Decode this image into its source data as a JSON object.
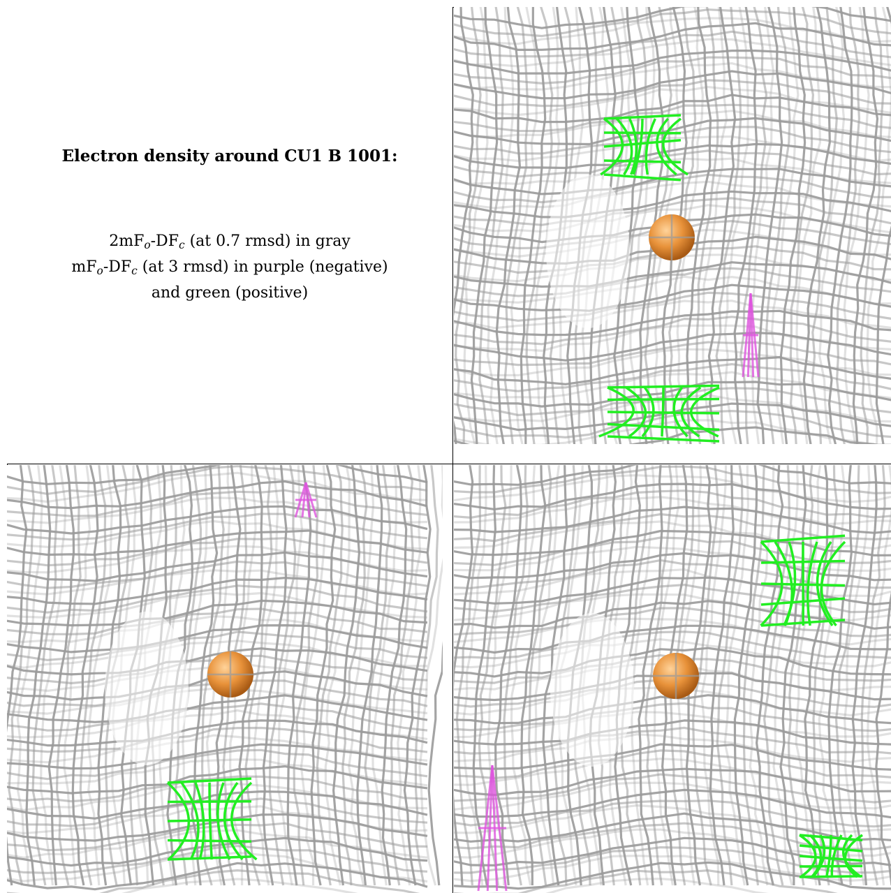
{
  "caption": {
    "title": "Electron density around CU1 B 1001:",
    "line1": {
      "pre": "2mF",
      "sub1": "o",
      "mid": "-DF",
      "sub2": "c",
      "post": " (at 0.7 rmsd) in gray"
    },
    "line2": {
      "pre": "mF",
      "sub1": "o",
      "mid": "-DF",
      "sub2": "c",
      "post": " (at 3 rmsd) in purple (negative)"
    },
    "line3": "and green (positive)"
  },
  "colors": {
    "density_2fofc": "#9a9a9a",
    "density_positive": "#22ee22",
    "density_negative": "#dd55dd",
    "copper_atom": "#e8923a",
    "border": "#000000"
  },
  "panels": [
    {
      "view": "top-right",
      "atom": "CU1 B 1001"
    },
    {
      "view": "bottom-left",
      "atom": "CU1 B 1001"
    },
    {
      "view": "bottom-right",
      "atom": "CU1 B 1001"
    }
  ]
}
